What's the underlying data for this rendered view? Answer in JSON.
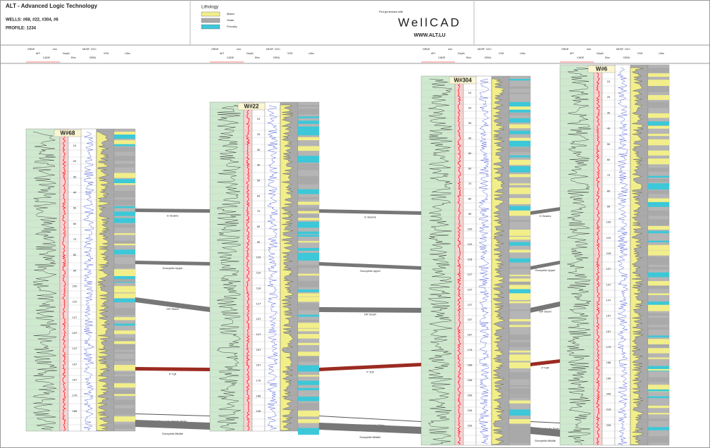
{
  "header": {
    "title": "ALT - Advanced Logic Technology",
    "wells": "WELLS: #68, #22, #304, #6",
    "profile": "PROFILE: 1234"
  },
  "lithology": {
    "title": "Lithology",
    "items": [
      {
        "label": "Matrix",
        "color": "#f2ef8a"
      },
      {
        "label": "Shale",
        "color": "#a9a9a9"
      },
      {
        "label": "Porosity",
        "color": "#3cc8d8"
      }
    ]
  },
  "plot_note": "Plot generated with",
  "logo": "WellCAD",
  "url": "WWW.ALT.LU",
  "column_headers": [
    "GRDE",
    "API",
    "CADE",
    "mm",
    "Depth",
    "Elev",
    "MDSF",
    "VSH",
    "DENL",
    "GCC",
    "Litho"
  ],
  "wells": [
    {
      "name": "W#68",
      "depths": [
        10,
        20,
        30,
        40,
        50,
        60,
        70,
        80,
        90,
        100,
        110,
        127,
        137,
        147,
        157,
        167,
        176,
        186
      ]
    },
    {
      "name": "W#22",
      "depths": [
        10,
        20,
        30,
        40,
        50,
        60,
        70,
        80,
        90,
        100,
        110,
        118,
        127,
        137,
        147,
        157,
        167,
        176,
        186,
        196
      ]
    },
    {
      "name": "W#304",
      "depths": [
        10,
        20,
        30,
        40,
        50,
        60,
        70,
        80,
        90,
        100,
        110,
        118,
        127,
        137,
        147,
        157,
        167,
        176,
        186,
        196,
        206,
        216,
        226
      ]
    },
    {
      "name": "W#6",
      "depths": [
        10,
        20,
        30,
        40,
        50,
        60,
        70,
        80,
        90,
        100,
        110,
        118,
        127,
        137,
        147,
        157,
        167,
        176,
        186,
        196,
        206,
        216,
        226
      ]
    }
  ],
  "formations": [
    "G Seams",
    "Gooryella Upper",
    "GR Seam",
    "P Tuff",
    "Gooryella Middle Rider",
    "Gooryella Middle"
  ]
}
